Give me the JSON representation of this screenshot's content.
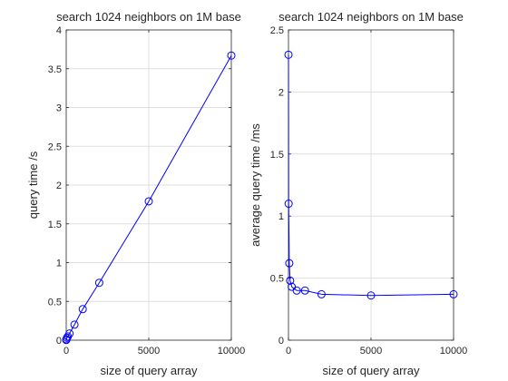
{
  "figure": {
    "background": "#ffffff"
  },
  "chart_data": [
    {
      "type": "line",
      "title": "search 1024 neighbors on 1M base",
      "xlabel": "size of query array",
      "ylabel": "query time /s",
      "xlim": [
        0,
        10000
      ],
      "ylim": [
        0,
        4
      ],
      "xticks": [
        0,
        5000,
        10000
      ],
      "yticks": [
        0,
        0.5,
        1,
        1.5,
        2,
        2.5,
        3,
        3.5,
        4
      ],
      "xtick_labels": [
        "0",
        "5000",
        "10000"
      ],
      "ytick_labels": [
        "0",
        "0.5",
        "1",
        "1.5",
        "2",
        "2.5",
        "3",
        "3.5",
        "4"
      ],
      "grid": true,
      "marker": "circle",
      "color": "#0000ff",
      "x": [
        1,
        10,
        50,
        100,
        200,
        500,
        1000,
        2000,
        5000,
        10000
      ],
      "y": [
        0.0023,
        0.011,
        0.031,
        0.048,
        0.086,
        0.2,
        0.4,
        0.74,
        1.79,
        3.67
      ]
    },
    {
      "type": "line",
      "title": "search 1024 neighbors on 1M base",
      "xlabel": "size of query array",
      "ylabel": "average query time /ms",
      "xlim": [
        0,
        10000
      ],
      "ylim": [
        0,
        2.5
      ],
      "xticks": [
        0,
        5000,
        10000
      ],
      "yticks": [
        0,
        0.5,
        1,
        1.5,
        2,
        2.5
      ],
      "xtick_labels": [
        "0",
        "5000",
        "10000"
      ],
      "ytick_labels": [
        "0",
        "0.5",
        "1",
        "1.5",
        "2",
        "2.5"
      ],
      "grid": true,
      "marker": "circle",
      "color": "#0000ff",
      "x": [
        1,
        10,
        50,
        100,
        200,
        500,
        1000,
        2000,
        5000,
        10000
      ],
      "y": [
        2.3,
        1.1,
        0.62,
        0.48,
        0.43,
        0.4,
        0.4,
        0.37,
        0.36,
        0.37
      ]
    }
  ]
}
